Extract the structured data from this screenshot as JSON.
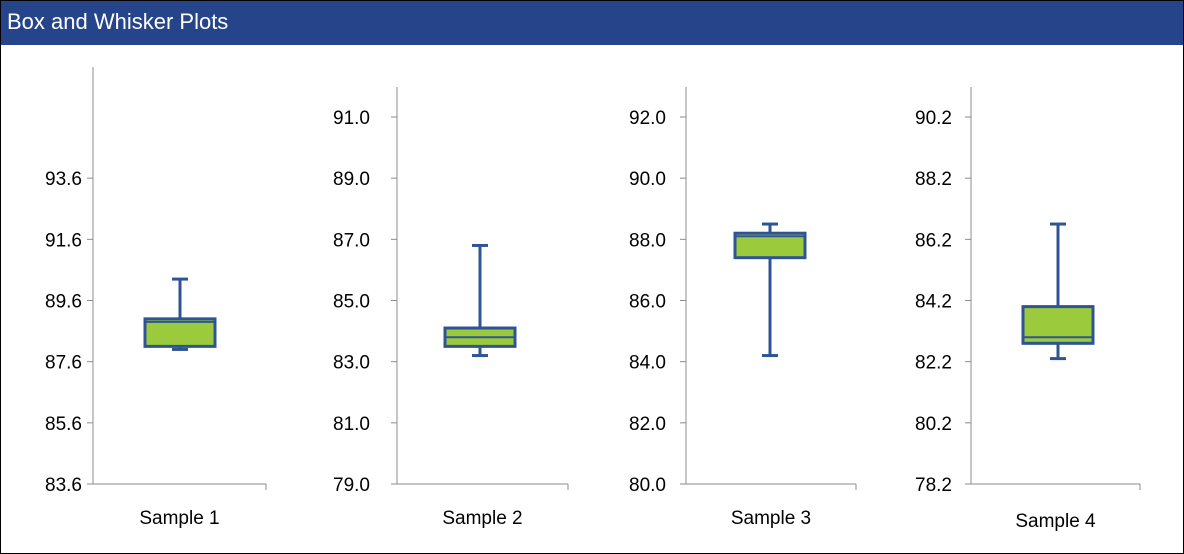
{
  "title": "Box and Whisker Plots",
  "colors": {
    "header": "#264489",
    "box_fill": "#9BCB3C",
    "box_stroke": "#2F5496",
    "axis": "#8C8C8C"
  },
  "chart_data": [
    {
      "type": "box",
      "category": "Sample 1",
      "ylim": [
        83.6,
        95.6
      ],
      "ticks": [
        "83.6",
        "85.6",
        "87.6",
        "89.6",
        "91.6",
        "93.6"
      ],
      "whisker_low": 88.0,
      "q1": 88.1,
      "median": 88.9,
      "q3": 89.0,
      "whisker_high": 90.3
    },
    {
      "type": "box",
      "category": "Sample 2",
      "ylim": [
        79.0,
        91.0
      ],
      "ticks": [
        "79.0",
        "81.0",
        "83.0",
        "85.0",
        "87.0",
        "89.0",
        "91.0"
      ],
      "whisker_low": 83.2,
      "q1": 83.5,
      "median": 83.8,
      "q3": 84.1,
      "whisker_high": 86.8
    },
    {
      "type": "box",
      "category": "Sample 3",
      "ylim": [
        80.0,
        92.0
      ],
      "ticks": [
        "80.0",
        "82.0",
        "84.0",
        "86.0",
        "88.0",
        "90.0",
        "92.0"
      ],
      "whisker_low": 84.2,
      "q1": 87.4,
      "median": 88.1,
      "q3": 88.2,
      "whisker_high": 88.5
    },
    {
      "type": "box",
      "category": "Sample 4",
      "ylim": [
        78.2,
        90.2
      ],
      "ticks": [
        "78.2",
        "80.2",
        "82.2",
        "84.2",
        "86.2",
        "88.2",
        "90.2"
      ],
      "whisker_low": 82.3,
      "q1": 82.8,
      "median": 83.0,
      "q3": 84.0,
      "whisker_high": 86.7
    }
  ]
}
